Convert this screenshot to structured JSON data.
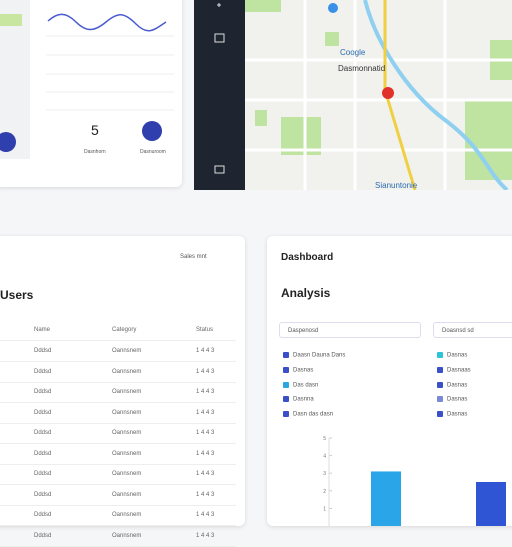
{
  "top_card": {
    "number": "5",
    "labels": [
      "Dasnhorn",
      "Dasnuroom"
    ]
  },
  "map": {
    "labels": [
      "Coogle",
      "Dasmonnatid",
      "Sianuntonie"
    ]
  },
  "users_card": {
    "dropdown": "Sales mnt",
    "title": "Users",
    "columns": [
      "Name",
      "Category",
      "Status"
    ],
    "rows": [
      [
        "Dddsd",
        "Oannsnem",
        "1 4 4 3"
      ],
      [
        "Dddsd",
        "Oannsnem",
        "1 4 4 3"
      ],
      [
        "Dddsd",
        "Oannsnem",
        "1 4 4 3"
      ],
      [
        "Dddsd",
        "Oannsnem",
        "1 4 4 3"
      ],
      [
        "Dddsd",
        "Oannsnem",
        "1 4 4 3"
      ],
      [
        "Dddsd",
        "Oannsnem",
        "1 4 4 3"
      ],
      [
        "Dddsd",
        "Oannsnem",
        "1 4 4 3"
      ],
      [
        "Dddsd",
        "Oannsnem",
        "1 4 4 3"
      ],
      [
        "Dddsd",
        "Oannsnem",
        "1 4 4 3"
      ],
      [
        "Dddsd",
        "Oannsnem",
        "1 4 4 3"
      ]
    ]
  },
  "analysis_card": {
    "heading": "Dashboard",
    "title": "Analysis",
    "inputs": [
      "Daspenosd",
      "Doasnsd sd"
    ],
    "list_left": [
      {
        "text": "Daasn Dauna Dans",
        "color": "#3b4fc8"
      },
      {
        "text": "Dasnas",
        "color": "#3b4fc8"
      },
      {
        "text": "Das dasn",
        "color": "#2aa6e0"
      },
      {
        "text": "Dasnna",
        "color": "#3b4fc8"
      },
      {
        "text": "Dasn das dasn",
        "color": "#3b4fc8"
      }
    ],
    "list_right": [
      {
        "text": "Dasnas",
        "color": "#2cc4d8"
      },
      {
        "text": "Dasnaas",
        "color": "#3b4fc8"
      },
      {
        "text": "Dasnas",
        "color": "#3b4fc8"
      },
      {
        "text": "Dasnas",
        "color": "#7a88d8"
      },
      {
        "text": "Dasnas",
        "color": "#3b4fc8"
      }
    ],
    "chart": {
      "ylim": [
        0,
        5
      ],
      "yticks": [
        1,
        2,
        3,
        4,
        5
      ],
      "values": [
        3.1,
        2.5
      ],
      "colors": [
        "#2aa6e8",
        "#2f55d4"
      ]
    }
  }
}
